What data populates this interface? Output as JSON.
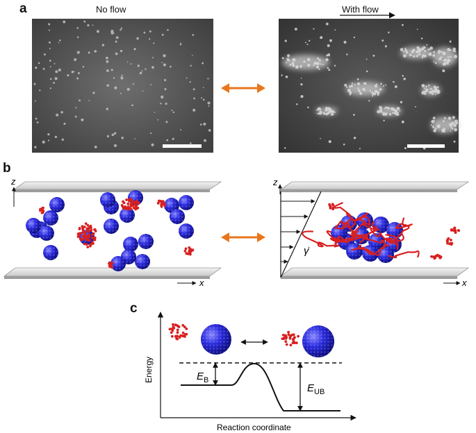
{
  "panel_a": {
    "label": "a",
    "left_title": "No flow",
    "right_title": "With flow"
  },
  "panel_b": {
    "label": "b",
    "axis_z": "z",
    "axis_x": "x",
    "shear_symbol": "γ̇"
  },
  "panel_c": {
    "label": "c",
    "y_label": "Energy",
    "x_label": "Reaction coordinate",
    "eb_main": "E",
    "eb_sub": "B",
    "eub_main": "E",
    "eub_sub": "UB"
  },
  "colors": {
    "colloid": "#1f1fd8",
    "polymer": "#d82020",
    "arrow": "#e8761c"
  }
}
